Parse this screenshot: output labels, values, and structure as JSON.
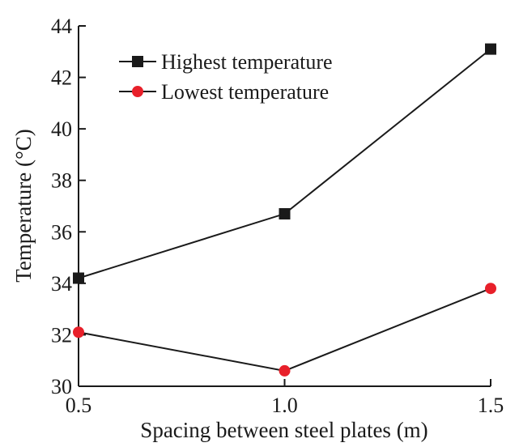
{
  "chart_data": {
    "type": "line",
    "title": "",
    "xlabel": "Spacing between steel plates (m)",
    "ylabel": "Temperature (°C)",
    "x": [
      0.5,
      1.0,
      1.5
    ],
    "x_tick_labels": [
      "0.5",
      "1.0",
      "1.5"
    ],
    "xlim": [
      0.5,
      1.5
    ],
    "ylim": [
      30,
      44
    ],
    "y_ticks": [
      30,
      32,
      34,
      36,
      38,
      40,
      42,
      44
    ],
    "grid": false,
    "legend_position": "top-left",
    "series": [
      {
        "name": "Highest temperature",
        "values": [
          34.2,
          36.7,
          43.1
        ],
        "marker": "square",
        "line_color": "#1a1a1a",
        "marker_color": "#1a1a1a"
      },
      {
        "name": "Lowest temperature",
        "values": [
          32.1,
          30.6,
          33.8
        ],
        "marker": "circle",
        "line_color": "#1a1a1a",
        "marker_color": "#e8202a"
      }
    ]
  }
}
